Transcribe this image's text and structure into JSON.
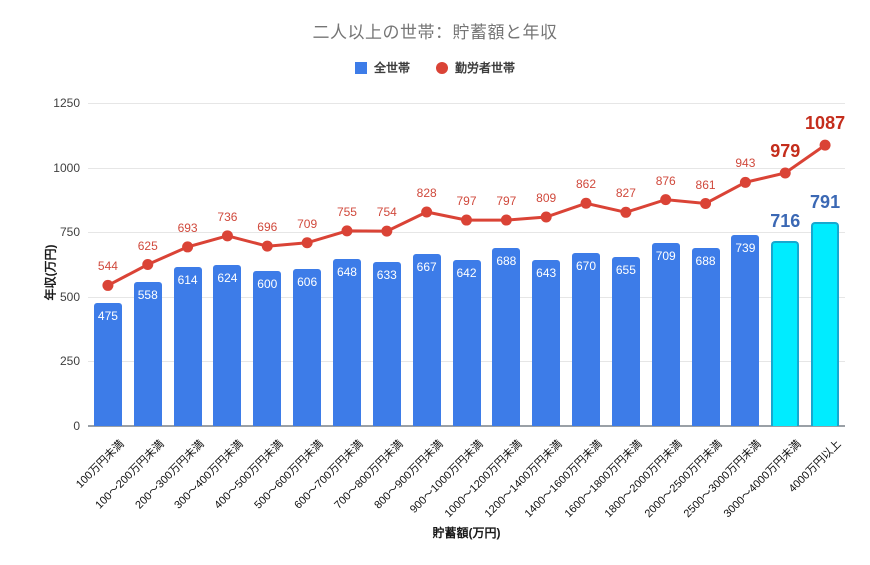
{
  "title": "二人以上の世帯：貯蓄額と年収",
  "legend": {
    "items": [
      {
        "label": "全世帯",
        "marker": "square",
        "color": "#3d7ce8"
      },
      {
        "label": "勤労者世帯",
        "marker": "circle",
        "color": "#da4336"
      }
    ]
  },
  "chart_data": {
    "type": "bar",
    "title": "二人以上の世帯：貯蓄額と年収",
    "xlabel": "貯蓄額(万円)",
    "ylabel": "年収(万円)",
    "ylim": [
      0,
      1250
    ],
    "yticks": [
      0,
      250,
      500,
      750,
      1000,
      1250
    ],
    "grid": true,
    "legend_position": "top",
    "categories": [
      "100万円未満",
      "100〜200万円未満",
      "200〜300万円未満",
      "300〜400万円未満",
      "400〜500万円未満",
      "500〜600万円未満",
      "600〜700万円未満",
      "700〜800万円未満",
      "800〜900万円未満",
      "900〜1000万円未満",
      "1000〜1200万円未満",
      "1200〜1400万円未満",
      "1400〜1600万円未満",
      "1600〜1800万円未満",
      "1800〜2000万円未満",
      "2000〜2500万円未満",
      "2500〜3000万円未満",
      "3000〜4000万円未満",
      "4000万円以上"
    ],
    "series": [
      {
        "name": "全世帯",
        "type": "bar",
        "values": [
          475,
          558,
          614,
          624,
          600,
          606,
          648,
          633,
          667,
          642,
          688,
          643,
          670,
          655,
          709,
          688,
          739,
          716,
          791
        ],
        "color": "#3d7ce8",
        "highlight_color": "#00ecff",
        "highlight_border": "#17a8cf",
        "highlight_indices": [
          17,
          18
        ],
        "highlight_label_color": "#3b68b4"
      },
      {
        "name": "勤労者世帯",
        "type": "line",
        "values": [
          544,
          625,
          693,
          736,
          696,
          709,
          755,
          754,
          828,
          797,
          797,
          809,
          862,
          827,
          876,
          861,
          943,
          979,
          1087
        ],
        "color": "#da4336",
        "label_color": "#d0493c",
        "big_label_indices": [
          17,
          18
        ],
        "big_label_color": "#c42d1c"
      }
    ]
  }
}
